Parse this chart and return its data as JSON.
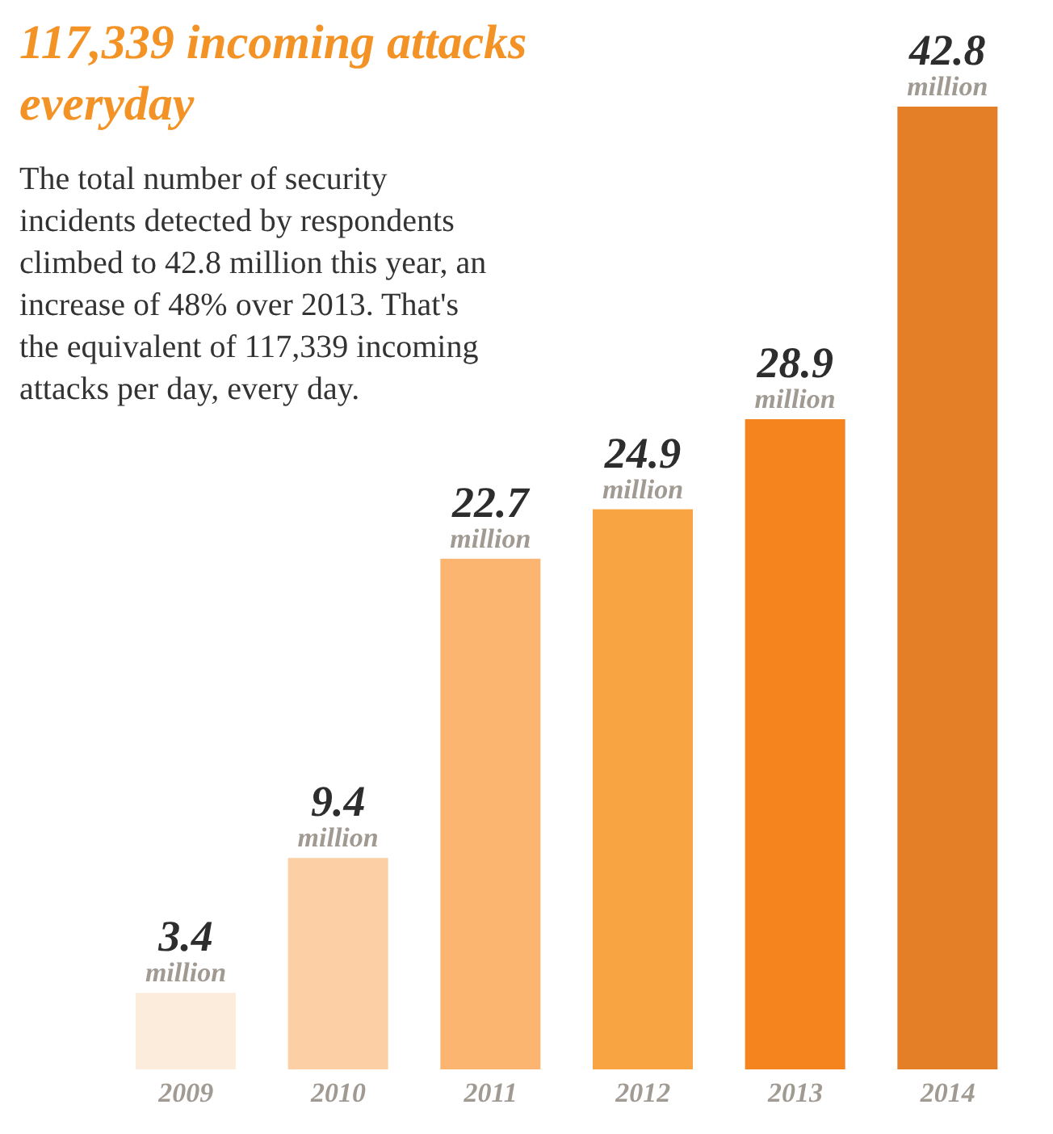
{
  "chart_data": {
    "type": "bar",
    "title": "117,339 incoming attacks everyday",
    "annotations": [
      "The total number of security incidents detected by respondents climbed to 42.8 million this year, an increase of 48% over 2013. That's the equivalent of 117,339 incoming attacks per day, every day."
    ],
    "categories": [
      "2009",
      "2010",
      "2011",
      "2012",
      "2013",
      "2014"
    ],
    "values": [
      3.4,
      9.4,
      22.7,
      24.9,
      28.9,
      42.8
    ],
    "colors": [
      "#fcecdc",
      "#fcd0a4",
      "#fbb571",
      "#f9a443",
      "#f5841f",
      "#e47e27"
    ],
    "value_labels": [
      "3.4 million",
      "9.4 million",
      "22.7 million",
      "24.9 million",
      "28.9 million",
      "42.8 million"
    ]
  }
}
